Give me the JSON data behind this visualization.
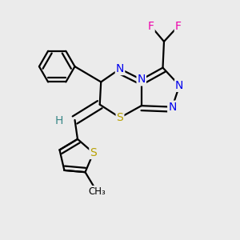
{
  "background_color": "#ebebeb",
  "atom_colors": {
    "N": "#0000ee",
    "S": "#b8a000",
    "F": "#ee00aa",
    "H": "#3a8888",
    "C": "#000000"
  },
  "bond_color": "#000000",
  "bond_width": 1.6,
  "figsize": [
    3.0,
    3.0
  ],
  "dpi": 100
}
